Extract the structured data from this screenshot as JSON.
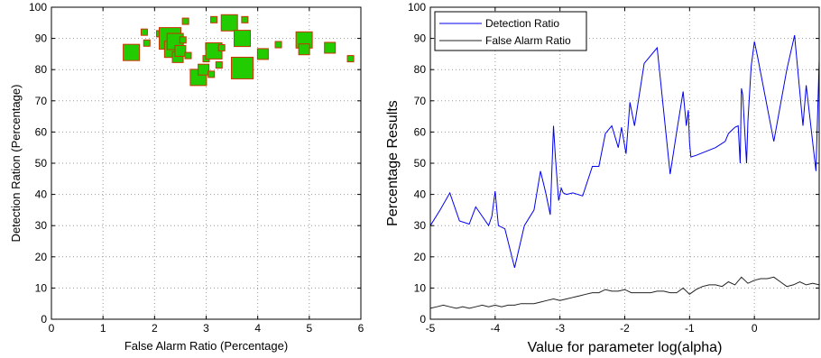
{
  "chart_data": [
    {
      "type": "scatter",
      "xlabel": "False Alarm Ratio (Percentage)",
      "ylabel": "Detection Ration (Percentage)",
      "xlim": [
        0,
        6
      ],
      "ylim": [
        0,
        100
      ],
      "xticks": [
        0,
        1,
        2,
        3,
        4,
        5,
        6
      ],
      "yticks": [
        0,
        10,
        20,
        30,
        40,
        50,
        60,
        70,
        80,
        90,
        100
      ],
      "grid": true,
      "marker": "square",
      "marker_fill": "#22cc00",
      "marker_edge": "#cc3300",
      "points": [
        {
          "x": 1.55,
          "y": 85.5,
          "size": 3
        },
        {
          "x": 1.8,
          "y": 92,
          "size": 1
        },
        {
          "x": 1.85,
          "y": 88.5,
          "size": 1
        },
        {
          "x": 2.1,
          "y": 91.5,
          "size": 1
        },
        {
          "x": 2.3,
          "y": 90,
          "size": 4
        },
        {
          "x": 2.35,
          "y": 86.5,
          "size": 3
        },
        {
          "x": 2.4,
          "y": 89,
          "size": 3
        },
        {
          "x": 2.45,
          "y": 84,
          "size": 2
        },
        {
          "x": 2.5,
          "y": 86,
          "size": 2
        },
        {
          "x": 2.55,
          "y": 89.5,
          "size": 1
        },
        {
          "x": 2.6,
          "y": 95.5,
          "size": 1
        },
        {
          "x": 2.65,
          "y": 84.5,
          "size": 1
        },
        {
          "x": 2.85,
          "y": 77.5,
          "size": 3
        },
        {
          "x": 2.95,
          "y": 80,
          "size": 2
        },
        {
          "x": 3.0,
          "y": 83.5,
          "size": 1
        },
        {
          "x": 3.05,
          "y": 87.5,
          "size": 1
        },
        {
          "x": 3.1,
          "y": 78.5,
          "size": 1
        },
        {
          "x": 3.15,
          "y": 96,
          "size": 1
        },
        {
          "x": 3.15,
          "y": 86,
          "size": 3
        },
        {
          "x": 3.25,
          "y": 81.5,
          "size": 1
        },
        {
          "x": 3.3,
          "y": 87,
          "size": 1
        },
        {
          "x": 3.45,
          "y": 95,
          "size": 3
        },
        {
          "x": 3.65,
          "y": 90.5,
          "size": 1
        },
        {
          "x": 3.7,
          "y": 80.5,
          "size": 4
        },
        {
          "x": 3.7,
          "y": 90,
          "size": 3
        },
        {
          "x": 3.75,
          "y": 96,
          "size": 1
        },
        {
          "x": 4.1,
          "y": 85,
          "size": 2
        },
        {
          "x": 4.4,
          "y": 88,
          "size": 1
        },
        {
          "x": 4.9,
          "y": 89.5,
          "size": 3
        },
        {
          "x": 4.9,
          "y": 86.5,
          "size": 2
        },
        {
          "x": 5.4,
          "y": 87,
          "size": 2
        },
        {
          "x": 5.8,
          "y": 83.5,
          "size": 1
        }
      ]
    },
    {
      "type": "line",
      "xlabel": "Value for parameter log(alpha)",
      "ylabel": "Percentage Results",
      "xlim": [
        -5,
        1
      ],
      "ylim": [
        0,
        100
      ],
      "xticks": [
        -5,
        -4,
        -3,
        -2,
        -1,
        0
      ],
      "yticks": [
        0,
        10,
        20,
        30,
        40,
        50,
        60,
        70,
        80,
        90,
        100
      ],
      "grid": true,
      "legend_position": "top-left",
      "series": [
        {
          "name": "Detection Ratio",
          "color": "#0000ee",
          "x": [
            -5,
            -4.85,
            -4.7,
            -4.55,
            -4.4,
            -4.3,
            -4.1,
            -4.05,
            -4.0,
            -3.95,
            -3.85,
            -3.7,
            -3.55,
            -3.4,
            -3.3,
            -3.22,
            -3.15,
            -3.1,
            -3.07,
            -3.02,
            -2.98,
            -2.95,
            -2.9,
            -2.8,
            -2.65,
            -2.5,
            -2.4,
            -2.3,
            -2.2,
            -2.1,
            -2.05,
            -1.98,
            -1.92,
            -1.85,
            -1.7,
            -1.5,
            -1.3,
            -1.2,
            -1.1,
            -1.05,
            -1.02,
            -1.0,
            -0.98,
            -0.9,
            -0.6,
            -0.45,
            -0.4,
            -0.3,
            -0.25,
            -0.22,
            -0.2,
            -0.18,
            -0.12,
            -0.1,
            -0.05,
            0.0,
            0.05,
            0.3,
            0.5,
            0.62,
            0.75,
            0.8,
            0.95,
            1.0
          ],
          "y": [
            30,
            35,
            40.5,
            31.5,
            30.5,
            36,
            30,
            33,
            41,
            30,
            29,
            16.5,
            30,
            35,
            47.5,
            40.5,
            33.5,
            62,
            52,
            38,
            42,
            40.5,
            40,
            40.5,
            39.5,
            49,
            49,
            59.5,
            62,
            55,
            61.5,
            53,
            69.5,
            62,
            82,
            87,
            46.5,
            60,
            73,
            62,
            67,
            56.5,
            52,
            52.5,
            55,
            57,
            59.5,
            61.5,
            62,
            50,
            74,
            72,
            50,
            63.5,
            81,
            89,
            84,
            57,
            80,
            91,
            62,
            75,
            47.5,
            83
          ]
        },
        {
          "name": "False Alarm Ratio",
          "color": "#222222",
          "x": [
            -5,
            -4.9,
            -4.8,
            -4.7,
            -4.6,
            -4.5,
            -4.4,
            -4.3,
            -4.2,
            -4.1,
            -4.0,
            -3.9,
            -3.8,
            -3.7,
            -3.6,
            -3.5,
            -3.4,
            -3.3,
            -3.2,
            -3.1,
            -3.0,
            -2.9,
            -2.8,
            -2.7,
            -2.6,
            -2.5,
            -2.4,
            -2.3,
            -2.2,
            -2.1,
            -2.0,
            -1.9,
            -1.8,
            -1.7,
            -1.6,
            -1.5,
            -1.4,
            -1.3,
            -1.2,
            -1.1,
            -1.0,
            -0.9,
            -0.8,
            -0.7,
            -0.6,
            -0.5,
            -0.4,
            -0.3,
            -0.2,
            -0.1,
            0.0,
            0.1,
            0.2,
            0.3,
            0.4,
            0.5,
            0.6,
            0.7,
            0.8,
            0.9,
            1.0
          ],
          "y": [
            3.5,
            4,
            4.5,
            4,
            3.5,
            4,
            3.5,
            4,
            4.5,
            4,
            4.5,
            4,
            4.5,
            4.5,
            5,
            5,
            5,
            5.5,
            6,
            6.5,
            6,
            6.5,
            7,
            7.5,
            8,
            8.5,
            8.5,
            9.5,
            9,
            9,
            9.5,
            8.5,
            8.5,
            8.5,
            8.5,
            9,
            9,
            8.5,
            8.5,
            10,
            8,
            9.5,
            10.5,
            11,
            11,
            10.5,
            12,
            11,
            13.5,
            11.5,
            12.5,
            13,
            13,
            13.5,
            12,
            10.5,
            11,
            12,
            11,
            11.5,
            11
          ]
        }
      ]
    }
  ]
}
